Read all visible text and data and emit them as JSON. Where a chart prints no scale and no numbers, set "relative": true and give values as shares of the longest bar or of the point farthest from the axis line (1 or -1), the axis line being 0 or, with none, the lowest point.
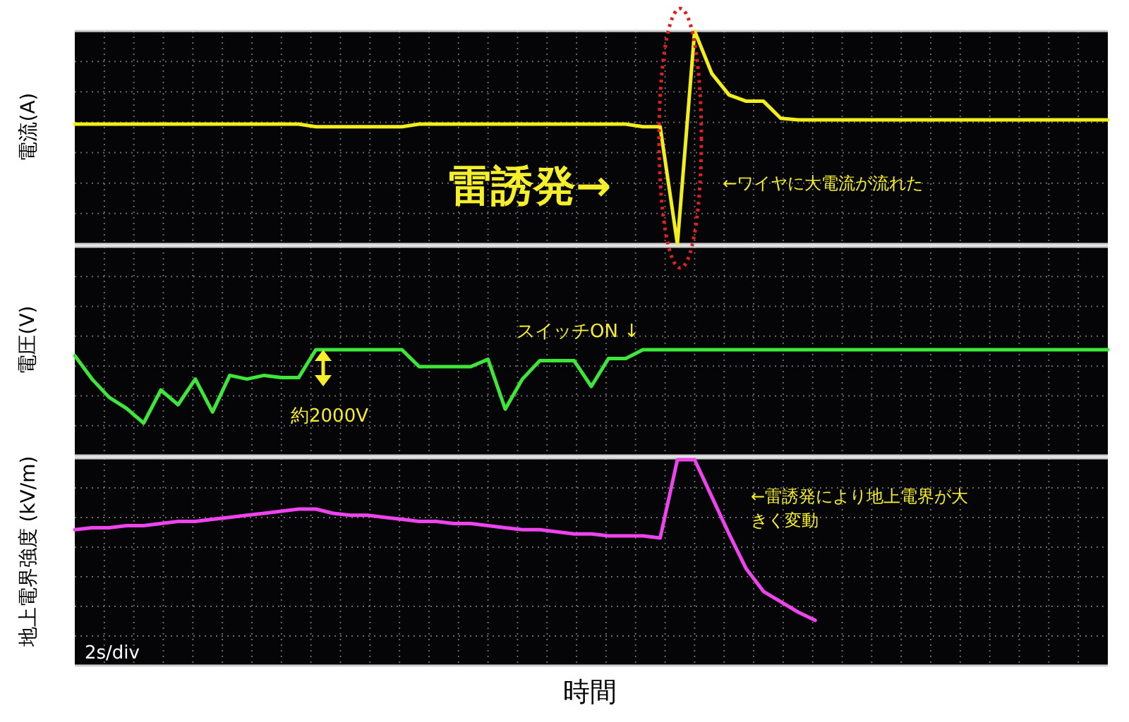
{
  "chart_data": [
    {
      "type": "line",
      "relative": true,
      "ylabel": "電流(A)",
      "grid": true,
      "categories": [
        null,
        null,
        null,
        null,
        null,
        null,
        null,
        null,
        null,
        null,
        null,
        null,
        null,
        null,
        null,
        null,
        null,
        null,
        null,
        null,
        null,
        null,
        null,
        null,
        null,
        null,
        null,
        null,
        null,
        null,
        null,
        null,
        null,
        null,
        null,
        null,
        null,
        null,
        null,
        null,
        null,
        null,
        null,
        null,
        null,
        null,
        null,
        null,
        null,
        null,
        null,
        null,
        null,
        null,
        null,
        null,
        null,
        null,
        null,
        null,
        null
      ],
      "series": [
        {
          "color": "#f2ee1c",
          "values": [
            0.563,
            0.563,
            0.563,
            0.563,
            0.563,
            0.563,
            0.563,
            0.563,
            0.563,
            0.563,
            0.563,
            0.563,
            0.563,
            0.563,
            0.55,
            0.55,
            0.55,
            0.55,
            0.55,
            0.55,
            0.563,
            0.563,
            0.563,
            0.563,
            0.563,
            0.563,
            0.563,
            0.563,
            0.563,
            0.563,
            0.563,
            0.563,
            0.563,
            0.55,
            0.55,
            0,
            1,
            0.8,
            0.7,
            0.67,
            0.67,
            0.59,
            0.583,
            0.583,
            0.583,
            0.583,
            0.583,
            0.583,
            0.583,
            0.583,
            0.583,
            0.583,
            0.583,
            0.583,
            0.583,
            0.583,
            0.583,
            0.583,
            0.583,
            0.583,
            0.583
          ]
        }
      ],
      "annotations": [
        "雷誘発→",
        "←ワイヤに大電流が流れた"
      ]
    },
    {
      "type": "line",
      "relative": true,
      "ylabel": "電圧(V)",
      "grid": true,
      "categories": [
        null,
        null,
        null,
        null,
        null,
        null,
        null,
        null,
        null,
        null,
        null,
        null,
        null,
        null,
        null,
        null,
        null,
        null,
        null,
        null,
        null,
        null,
        null,
        null,
        null,
        null,
        null,
        null,
        null,
        null,
        null,
        null,
        null,
        null,
        null,
        null,
        null,
        null,
        null,
        null,
        null,
        null,
        null,
        null,
        null,
        null,
        null,
        null,
        null,
        null,
        null,
        null,
        null,
        null,
        null,
        null,
        null,
        null,
        null,
        null,
        null
      ],
      "series": [
        {
          "color": "#3ee63a",
          "values": [
            0.92,
            0.6,
            0.35,
            0.2,
            0,
            0.45,
            0.25,
            0.6,
            0.15,
            0.65,
            0.6,
            0.65,
            0.62,
            0.62,
            1,
            1,
            1,
            1,
            1,
            1,
            0.77,
            0.77,
            0.77,
            0.77,
            0.87,
            0.19,
            0.6,
            0.85,
            0.85,
            0.85,
            0.5,
            0.88,
            0.88,
            1,
            1,
            1,
            1,
            1,
            1,
            1,
            1,
            1,
            1,
            1,
            1,
            1,
            1,
            1,
            1,
            1,
            1,
            1,
            1,
            1,
            1,
            1,
            1,
            1,
            1,
            1,
            1
          ]
        }
      ],
      "annotations": [
        "スイッチON ↓",
        "約2000V"
      ]
    },
    {
      "type": "line",
      "relative": true,
      "ylabel": "地上電界強度 (kV/m)",
      "xlabel": "時間",
      "grid": true,
      "categories": [
        null,
        null,
        null,
        null,
        null,
        null,
        null,
        null,
        null,
        null,
        null,
        null,
        null,
        null,
        null,
        null,
        null,
        null,
        null,
        null,
        null,
        null,
        null,
        null,
        null,
        null,
        null,
        null,
        null,
        null,
        null,
        null,
        null,
        null,
        null,
        null,
        null,
        null,
        null,
        null,
        null,
        null,
        null,
        null,
        null,
        null,
        null,
        null,
        null,
        null,
        null,
        null,
        null,
        null,
        null,
        null,
        null,
        null,
        null,
        null,
        null
      ],
      "series": [
        {
          "color": "#ee44ee",
          "values": [
            0.66,
            0.67,
            0.67,
            0.68,
            0.68,
            0.69,
            0.7,
            0.7,
            0.71,
            0.72,
            0.73,
            0.74,
            0.75,
            0.76,
            0.76,
            0.74,
            0.73,
            0.73,
            0.72,
            0.71,
            0.7,
            0.7,
            0.69,
            0.69,
            0.68,
            0.67,
            0.66,
            0.66,
            0.65,
            0.64,
            0.64,
            0.63,
            0.63,
            0.63,
            0.62,
            1,
            1,
            0.82,
            0.64,
            0.47,
            0.36,
            0.31,
            0.26,
            0.22,
            null,
            null,
            null,
            null,
            null,
            null,
            null,
            null,
            null,
            null,
            null,
            null,
            null,
            null,
            null,
            null,
            null
          ]
        }
      ],
      "annotations": [
        "←雷誘発により地上電界が大きく変動",
        "2s/div"
      ]
    }
  ]
}
